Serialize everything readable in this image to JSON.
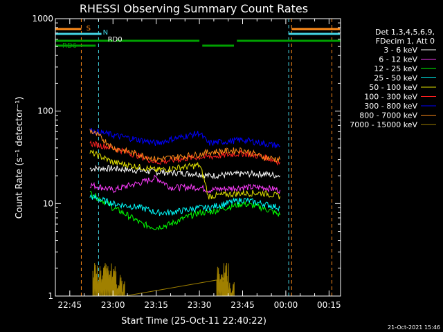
{
  "chart_data": {
    "type": "line",
    "title": "RHESSI Observing Summary Count Rates",
    "xlabel": "Start Time (25-Oct-11 22:40:22)",
    "ylabel": "Count Rate (s⁻¹ detector⁻¹)",
    "y_scale": "log",
    "ylim": [
      1,
      1000
    ],
    "xlim": [
      "22:40",
      "00:19"
    ],
    "x_ticks": [
      "22:45",
      "23:00",
      "23:15",
      "23:30",
      "23:45",
      "00:00",
      "00:15"
    ],
    "y_ticks": [
      "1",
      "10",
      "100",
      "1000"
    ],
    "legend_header": [
      "Det 1,3,4,5,6,9,",
      "FDecim 1, Att 0"
    ],
    "legend_position": "right",
    "annotations": {
      "flags": [
        {
          "label": "S",
          "color": "#ff8c1a"
        },
        {
          "label": "N",
          "color": "#44d7e6"
        },
        {
          "label": "RD0",
          "color": "#ffffff"
        },
        {
          "label": "RD6",
          "color": "#00a000"
        }
      ],
      "vertical_markers": [
        {
          "x": "22:49",
          "color": "#ff8c1a"
        },
        {
          "x": "22:55",
          "color": "#44d7e6"
        },
        {
          "x": "00:01",
          "color": "#44d7e6"
        },
        {
          "x": "00:02",
          "color": "#ff8c1a"
        },
        {
          "x": "00:16",
          "color": "#ff8c1a"
        }
      ]
    },
    "series": [
      {
        "name": "3 - 6 keV",
        "color": "#ffffff",
        "x": [
          "22:52",
          "23:00",
          "23:15",
          "23:30",
          "23:33",
          "23:45",
          "23:52",
          "23:58"
        ],
        "values": [
          24,
          24,
          22,
          21,
          20,
          21,
          21,
          20
        ]
      },
      {
        "name": "6 - 12 keV",
        "color": "#ff3cff",
        "x": [
          "22:52",
          "23:00",
          "23:10",
          "23:15",
          "23:20",
          "23:30",
          "23:33",
          "23:45",
          "23:52",
          "23:58"
        ],
        "values": [
          16,
          14,
          17,
          19,
          15,
          15,
          14,
          15,
          15,
          14
        ]
      },
      {
        "name": "12 - 25 keV",
        "color": "#00ff00",
        "x": [
          "22:52",
          "23:00",
          "23:10",
          "23:15",
          "23:20",
          "23:30",
          "23:33",
          "23:45",
          "23:52",
          "23:58"
        ],
        "values": [
          13,
          9,
          6,
          5.5,
          6,
          8,
          8,
          10,
          9,
          7.5
        ]
      },
      {
        "name": "25 - 50 keV",
        "color": "#00ffff",
        "x": [
          "22:52",
          "23:00",
          "23:10",
          "23:15",
          "23:20",
          "23:30",
          "23:33",
          "23:45",
          "23:52",
          "23:58"
        ],
        "values": [
          12,
          10,
          9,
          8,
          8,
          9,
          9,
          11,
          10,
          9
        ]
      },
      {
        "name": "50 - 100 keV",
        "color": "#e0e000",
        "x": [
          "22:52",
          "23:00",
          "23:15",
          "23:30",
          "23:33",
          "23:45",
          "23:52",
          "23:58"
        ],
        "values": [
          36,
          28,
          23,
          26,
          12,
          13,
          13,
          12
        ]
      },
      {
        "name": "100 - 300 keV",
        "color": "#ff2020",
        "x": [
          "22:52",
          "23:00",
          "23:15",
          "23:30",
          "23:33",
          "23:45",
          "23:52",
          "23:58"
        ],
        "values": [
          45,
          40,
          28,
          32,
          32,
          35,
          32,
          28
        ]
      },
      {
        "name": "300 - 800 keV",
        "color": "#0000ff",
        "x": [
          "22:52",
          "23:00",
          "23:15",
          "23:30",
          "23:33",
          "23:45",
          "23:52",
          "23:58"
        ],
        "values": [
          62,
          55,
          45,
          58,
          45,
          49,
          45,
          42
        ]
      },
      {
        "name": "800 - 7000 keV",
        "color": "#ff8c1a",
        "x": [
          "22:52",
          "23:00",
          "23:15",
          "23:30",
          "23:33",
          "23:45",
          "23:52",
          "23:58"
        ],
        "values": [
          62,
          40,
          30,
          34,
          36,
          38,
          32,
          30
        ]
      },
      {
        "name": "7000 - 15000 keV",
        "color": "#a08000",
        "x": [
          "22:53",
          "22:57",
          "23:00",
          "23:36",
          "23:38"
        ],
        "values": [
          2,
          2,
          1.5,
          2,
          1.5
        ]
      }
    ],
    "grid": false
  },
  "footer": {
    "date": "21-Oct-2021 15:46"
  }
}
